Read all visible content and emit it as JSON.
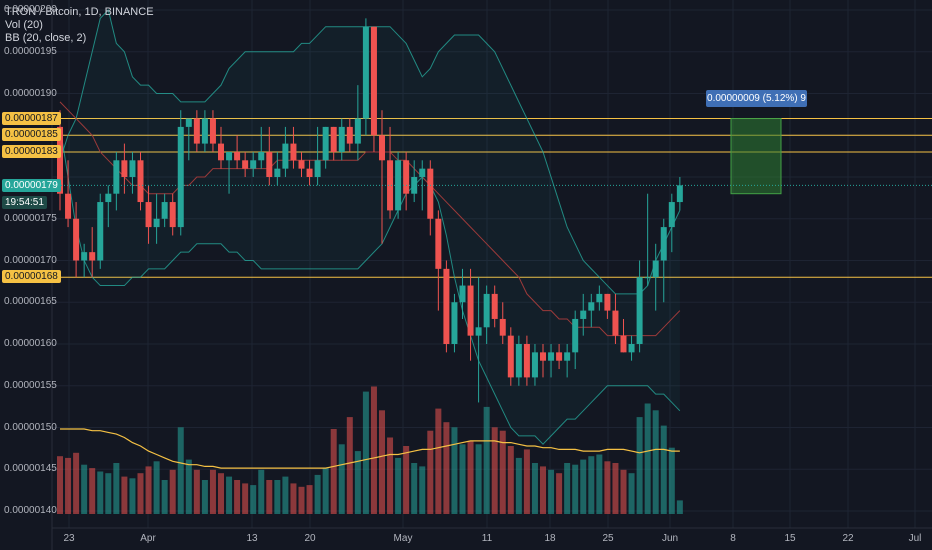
{
  "legend": {
    "title": "TRON / Bitcoin, 1D, BINANCE",
    "volume": "Vol (20)",
    "bollinger": "BB (20, close, 2)"
  },
  "price_axis": {
    "labels": [
      "0.00000200",
      "0.00000195",
      "0.00000190",
      "0.00000175",
      "0.00000170",
      "0.00000165",
      "0.00000160",
      "0.00000155",
      "0.00000150",
      "0.00000145",
      "0.00000140"
    ]
  },
  "horizontal_lines": {
    "labels": [
      "0.00000187",
      "0.00000185",
      "0.00000183",
      "0.00000168"
    ],
    "color": "#f5c144"
  },
  "current_price": {
    "label": "0.00000179",
    "countdown": "19:54:51",
    "color": "#26a69a"
  },
  "measure_tool": {
    "label": "0.00000009 (5.12%) 9"
  },
  "time_axis": {
    "labels": [
      "23",
      "Apr",
      "13",
      "20",
      "May",
      "11",
      "18",
      "25",
      "Jun",
      "8",
      "15",
      "22",
      "Jul"
    ]
  },
  "colors": {
    "up": "#26a69a",
    "down": "#ef5350",
    "bb_band": "#26a69a",
    "bb_basis": "#9c3a3a",
    "vol_ma": "#f5c144",
    "background": "#131722"
  },
  "chart_data": {
    "type": "candlestick",
    "title": "TRON / Bitcoin, 1D, BINANCE",
    "ylim": [
      1.38e-06,
      2.02e-06
    ],
    "candles": [
      {
        "o": 1.86e-06,
        "h": 1.88e-06,
        "l": 1.76e-06,
        "c": 1.78e-06,
        "v": 34
      },
      {
        "o": 1.78e-06,
        "h": 1.82e-06,
        "l": 1.74e-06,
        "c": 1.75e-06,
        "v": 33
      },
      {
        "o": 1.75e-06,
        "h": 1.77e-06,
        "l": 1.68e-06,
        "c": 1.7e-06,
        "v": 36
      },
      {
        "o": 1.7e-06,
        "h": 1.72e-06,
        "l": 1.68e-06,
        "c": 1.71e-06,
        "v": 29
      },
      {
        "o": 1.71e-06,
        "h": 1.74e-06,
        "l": 1.68e-06,
        "c": 1.7e-06,
        "v": 27
      },
      {
        "o": 1.7e-06,
        "h": 1.78e-06,
        "l": 1.69e-06,
        "c": 1.77e-06,
        "v": 25
      },
      {
        "o": 1.77e-06,
        "h": 1.79e-06,
        "l": 1.74e-06,
        "c": 1.78e-06,
        "v": 24
      },
      {
        "o": 1.78e-06,
        "h": 1.83e-06,
        "l": 1.76e-06,
        "c": 1.82e-06,
        "v": 30
      },
      {
        "o": 1.82e-06,
        "h": 1.84e-06,
        "l": 1.78e-06,
        "c": 1.8e-06,
        "v": 22
      },
      {
        "o": 1.8e-06,
        "h": 1.83e-06,
        "l": 1.78e-06,
        "c": 1.82e-06,
        "v": 21
      },
      {
        "o": 1.82e-06,
        "h": 1.83e-06,
        "l": 1.76e-06,
        "c": 1.77e-06,
        "v": 24
      },
      {
        "o": 1.77e-06,
        "h": 1.79e-06,
        "l": 1.72e-06,
        "c": 1.74e-06,
        "v": 28
      },
      {
        "o": 1.74e-06,
        "h": 1.78e-06,
        "l": 1.72e-06,
        "c": 1.75e-06,
        "v": 31
      },
      {
        "o": 1.75e-06,
        "h": 1.78e-06,
        "l": 1.74e-06,
        "c": 1.77e-06,
        "v": 20
      },
      {
        "o": 1.77e-06,
        "h": 1.78e-06,
        "l": 1.73e-06,
        "c": 1.74e-06,
        "v": 26
      },
      {
        "o": 1.74e-06,
        "h": 1.88e-06,
        "l": 1.73e-06,
        "c": 1.86e-06,
        "v": 51
      },
      {
        "o": 1.86e-06,
        "h": 1.87e-06,
        "l": 1.82e-06,
        "c": 1.87e-06,
        "v": 32
      },
      {
        "o": 1.87e-06,
        "h": 1.88e-06,
        "l": 1.83e-06,
        "c": 1.84e-06,
        "v": 26
      },
      {
        "o": 1.84e-06,
        "h": 1.88e-06,
        "l": 1.83e-06,
        "c": 1.87e-06,
        "v": 20
      },
      {
        "o": 1.87e-06,
        "h": 1.88e-06,
        "l": 1.83e-06,
        "c": 1.84e-06,
        "v": 26
      },
      {
        "o": 1.84e-06,
        "h": 1.86e-06,
        "l": 1.81e-06,
        "c": 1.82e-06,
        "v": 24
      },
      {
        "o": 1.82e-06,
        "h": 1.83e-06,
        "l": 1.78e-06,
        "c": 1.83e-06,
        "v": 22
      },
      {
        "o": 1.83e-06,
        "h": 1.85e-06,
        "l": 1.81e-06,
        "c": 1.82e-06,
        "v": 20
      },
      {
        "o": 1.82e-06,
        "h": 1.83e-06,
        "l": 1.8e-06,
        "c": 1.81e-06,
        "v": 18
      },
      {
        "o": 1.81e-06,
        "h": 1.83e-06,
        "l": 1.8e-06,
        "c": 1.82e-06,
        "v": 17
      },
      {
        "o": 1.82e-06,
        "h": 1.86e-06,
        "l": 1.81e-06,
        "c": 1.83e-06,
        "v": 26
      },
      {
        "o": 1.83e-06,
        "h": 1.86e-06,
        "l": 1.79e-06,
        "c": 1.8e-06,
        "v": 20
      },
      {
        "o": 1.8e-06,
        "h": 1.83e-06,
        "l": 1.79e-06,
        "c": 1.81e-06,
        "v": 20
      },
      {
        "o": 1.81e-06,
        "h": 1.86e-06,
        "l": 1.8e-06,
        "c": 1.84e-06,
        "v": 22
      },
      {
        "o": 1.84e-06,
        "h": 1.86e-06,
        "l": 1.81e-06,
        "c": 1.82e-06,
        "v": 18
      },
      {
        "o": 1.82e-06,
        "h": 1.83e-06,
        "l": 1.8e-06,
        "c": 1.81e-06,
        "v": 16
      },
      {
        "o": 1.81e-06,
        "h": 1.82e-06,
        "l": 1.79e-06,
        "c": 1.8e-06,
        "v": 17
      },
      {
        "o": 1.8e-06,
        "h": 1.86e-06,
        "l": 1.79e-06,
        "c": 1.82e-06,
        "v": 23
      },
      {
        "o": 1.82e-06,
        "h": 1.86e-06,
        "l": 1.81e-06,
        "c": 1.86e-06,
        "v": 27
      },
      {
        "o": 1.86e-06,
        "h": 1.86e-06,
        "l": 1.82e-06,
        "c": 1.83e-06,
        "v": 50
      },
      {
        "o": 1.83e-06,
        "h": 1.87e-06,
        "l": 1.82e-06,
        "c": 1.86e-06,
        "v": 41
      },
      {
        "o": 1.86e-06,
        "h": 1.87e-06,
        "l": 1.83e-06,
        "c": 1.84e-06,
        "v": 57
      },
      {
        "o": 1.84e-06,
        "h": 1.91e-06,
        "l": 1.82e-06,
        "c": 1.87e-06,
        "v": 37
      },
      {
        "o": 1.87e-06,
        "h": 1.99e-06,
        "l": 1.85e-06,
        "c": 1.98e-06,
        "v": 72
      },
      {
        "o": 1.98e-06,
        "h": 1.98e-06,
        "l": 1.83e-06,
        "c": 1.85e-06,
        "v": 75
      },
      {
        "o": 1.85e-06,
        "h": 1.88e-06,
        "l": 1.72e-06,
        "c": 1.82e-06,
        "v": 61
      },
      {
        "o": 1.82e-06,
        "h": 1.86e-06,
        "l": 1.75e-06,
        "c": 1.76e-06,
        "v": 45
      },
      {
        "o": 1.76e-06,
        "h": 1.83e-06,
        "l": 1.75e-06,
        "c": 1.82e-06,
        "v": 33
      },
      {
        "o": 1.82e-06,
        "h": 1.83e-06,
        "l": 1.76e-06,
        "c": 1.78e-06,
        "v": 40
      },
      {
        "o": 1.78e-06,
        "h": 1.82e-06,
        "l": 1.77e-06,
        "c": 1.8e-06,
        "v": 30
      },
      {
        "o": 1.8e-06,
        "h": 1.82e-06,
        "l": 1.76e-06,
        "c": 1.81e-06,
        "v": 28
      },
      {
        "o": 1.81e-06,
        "h": 1.82e-06,
        "l": 1.73e-06,
        "c": 1.75e-06,
        "v": 49
      },
      {
        "o": 1.75e-06,
        "h": 1.76e-06,
        "l": 1.64e-06,
        "c": 1.69e-06,
        "v": 62
      },
      {
        "o": 1.69e-06,
        "h": 1.7e-06,
        "l": 1.59e-06,
        "c": 1.6e-06,
        "v": 54
      },
      {
        "o": 1.6e-06,
        "h": 1.66e-06,
        "l": 1.59e-06,
        "c": 1.65e-06,
        "v": 51
      },
      {
        "o": 1.65e-06,
        "h": 1.69e-06,
        "l": 1.63e-06,
        "c": 1.67e-06,
        "v": 41
      },
      {
        "o": 1.67e-06,
        "h": 1.69e-06,
        "l": 1.58e-06,
        "c": 1.61e-06,
        "v": 43
      },
      {
        "o": 1.61e-06,
        "h": 1.68e-06,
        "l": 1.53e-06,
        "c": 1.62e-06,
        "v": 41
      },
      {
        "o": 1.62e-06,
        "h": 1.67e-06,
        "l": 1.6e-06,
        "c": 1.66e-06,
        "v": 63
      },
      {
        "o": 1.66e-06,
        "h": 1.67e-06,
        "l": 1.62e-06,
        "c": 1.63e-06,
        "v": 51
      },
      {
        "o": 1.63e-06,
        "h": 1.65e-06,
        "l": 1.6e-06,
        "c": 1.61e-06,
        "v": 49
      },
      {
        "o": 1.61e-06,
        "h": 1.62e-06,
        "l": 1.55e-06,
        "c": 1.56e-06,
        "v": 40
      },
      {
        "o": 1.56e-06,
        "h": 1.61e-06,
        "l": 1.55e-06,
        "c": 1.6e-06,
        "v": 33
      },
      {
        "o": 1.6e-06,
        "h": 1.61e-06,
        "l": 1.55e-06,
        "c": 1.56e-06,
        "v": 38
      },
      {
        "o": 1.56e-06,
        "h": 1.6e-06,
        "l": 1.55e-06,
        "c": 1.59e-06,
        "v": 30
      },
      {
        "o": 1.59e-06,
        "h": 1.6e-06,
        "l": 1.56e-06,
        "c": 1.58e-06,
        "v": 28
      },
      {
        "o": 1.58e-06,
        "h": 1.6e-06,
        "l": 1.56e-06,
        "c": 1.59e-06,
        "v": 26
      },
      {
        "o": 1.59e-06,
        "h": 1.6e-06,
        "l": 1.57e-06,
        "c": 1.58e-06,
        "v": 24
      },
      {
        "o": 1.58e-06,
        "h": 1.6e-06,
        "l": 1.56e-06,
        "c": 1.59e-06,
        "v": 30
      },
      {
        "o": 1.59e-06,
        "h": 1.64e-06,
        "l": 1.57e-06,
        "c": 1.63e-06,
        "v": 29
      },
      {
        "o": 1.63e-06,
        "h": 1.66e-06,
        "l": 1.61e-06,
        "c": 1.64e-06,
        "v": 32
      },
      {
        "o": 1.64e-06,
        "h": 1.66e-06,
        "l": 1.62e-06,
        "c": 1.65e-06,
        "v": 34
      },
      {
        "o": 1.65e-06,
        "h": 1.67e-06,
        "l": 1.64e-06,
        "c": 1.66e-06,
        "v": 35
      },
      {
        "o": 1.66e-06,
        "h": 1.66e-06,
        "l": 1.63e-06,
        "c": 1.64e-06,
        "v": 31
      },
      {
        "o": 1.64e-06,
        "h": 1.66e-06,
        "l": 1.6e-06,
        "c": 1.61e-06,
        "v": 30
      },
      {
        "o": 1.61e-06,
        "h": 1.63e-06,
        "l": 1.59e-06,
        "c": 1.59e-06,
        "v": 26
      },
      {
        "o": 1.59e-06,
        "h": 1.61e-06,
        "l": 1.58e-06,
        "c": 1.6e-06,
        "v": 24
      },
      {
        "o": 1.6e-06,
        "h": 1.7e-06,
        "l": 1.59e-06,
        "c": 1.68e-06,
        "v": 57
      },
      {
        "o": 1.68e-06,
        "h": 1.78e-06,
        "l": 1.67e-06,
        "c": 1.68e-06,
        "v": 65
      },
      {
        "o": 1.68e-06,
        "h": 1.72e-06,
        "l": 1.64e-06,
        "c": 1.7e-06,
        "v": 61
      },
      {
        "o": 1.7e-06,
        "h": 1.75e-06,
        "l": 1.65e-06,
        "c": 1.74e-06,
        "v": 52
      },
      {
        "o": 1.74e-06,
        "h": 1.78e-06,
        "l": 1.71e-06,
        "c": 1.77e-06,
        "v": 39
      },
      {
        "o": 1.77e-06,
        "h": 1.8e-06,
        "l": 1.76e-06,
        "c": 1.79e-06,
        "v": 8
      }
    ],
    "bb_upper": [
      1.82e-06,
      1.85e-06,
      1.87e-06,
      1.91e-06,
      1.95e-06,
      1.99e-06,
      2e-06,
      1.96e-06,
      1.95e-06,
      1.92e-06,
      1.91e-06,
      1.91e-06,
      1.9e-06,
      1.9e-06,
      1.9e-06,
      1.89e-06,
      1.89e-06,
      1.89e-06,
      1.89e-06,
      1.9e-06,
      1.91e-06,
      1.93e-06,
      1.94e-06,
      1.95e-06,
      1.95e-06,
      1.95e-06,
      1.95e-06,
      1.95e-06,
      1.95e-06,
      1.95e-06,
      1.96e-06,
      1.96e-06,
      1.97e-06,
      1.98e-06,
      1.98e-06,
      1.98e-06,
      1.98e-06,
      1.98e-06,
      1.98e-06,
      1.98e-06,
      1.98e-06,
      1.98e-06,
      1.97e-06,
      1.96e-06,
      1.94e-06,
      1.92e-06,
      1.93e-06,
      1.95e-06,
      1.96e-06,
      1.97e-06,
      1.97e-06,
      1.97e-06,
      1.97e-06,
      1.96e-06,
      1.95e-06,
      1.93e-06,
      1.91e-06,
      1.89e-06,
      1.87e-06,
      1.85e-06,
      1.83e-06,
      1.8e-06,
      1.77e-06,
      1.74e-06,
      1.72e-06,
      1.7e-06,
      1.69e-06,
      1.68e-06,
      1.67e-06,
      1.66e-06,
      1.66e-06,
      1.66e-06,
      1.66e-06,
      1.67e-06,
      1.7e-06,
      1.72e-06,
      1.74e-06,
      1.76e-06
    ],
    "bb_basis": [
      1.89e-06,
      1.88e-06,
      1.87e-06,
      1.86e-06,
      1.85e-06,
      1.83e-06,
      1.82e-06,
      1.81e-06,
      1.8e-06,
      1.79e-06,
      1.79e-06,
      1.78e-06,
      1.78e-06,
      1.78e-06,
      1.78e-06,
      1.79e-06,
      1.79e-06,
      1.8e-06,
      1.8e-06,
      1.81e-06,
      1.81e-06,
      1.81e-06,
      1.81e-06,
      1.81e-06,
      1.81e-06,
      1.81e-06,
      1.81e-06,
      1.82e-06,
      1.82e-06,
      1.82e-06,
      1.82e-06,
      1.82e-06,
      1.82e-06,
      1.82e-06,
      1.82e-06,
      1.82e-06,
      1.82e-06,
      1.82e-06,
      1.83e-06,
      1.83e-06,
      1.83e-06,
      1.83e-06,
      1.82e-06,
      1.82e-06,
      1.81e-06,
      1.8e-06,
      1.79e-06,
      1.78e-06,
      1.77e-06,
      1.76e-06,
      1.75e-06,
      1.74e-06,
      1.73e-06,
      1.72e-06,
      1.71e-06,
      1.7e-06,
      1.69e-06,
      1.68e-06,
      1.66e-06,
      1.65e-06,
      1.64e-06,
      1.64e-06,
      1.63e-06,
      1.63e-06,
      1.62e-06,
      1.62e-06,
      1.62e-06,
      1.62e-06,
      1.61e-06,
      1.61e-06,
      1.61e-06,
      1.61e-06,
      1.61e-06,
      1.61e-06,
      1.61e-06,
      1.62e-06,
      1.63e-06,
      1.64e-06
    ],
    "bb_lower": [
      1.86e-06,
      1.8e-06,
      1.74e-06,
      1.7e-06,
      1.68e-06,
      1.67e-06,
      1.67e-06,
      1.67e-06,
      1.67e-06,
      1.68e-06,
      1.68e-06,
      1.69e-06,
      1.69e-06,
      1.69e-06,
      1.7e-06,
      1.71e-06,
      1.71e-06,
      1.72e-06,
      1.72e-06,
      1.72e-06,
      1.72e-06,
      1.71e-06,
      1.71e-06,
      1.7e-06,
      1.7e-06,
      1.69e-06,
      1.69e-06,
      1.69e-06,
      1.69e-06,
      1.69e-06,
      1.69e-06,
      1.69e-06,
      1.69e-06,
      1.69e-06,
      1.69e-06,
      1.69e-06,
      1.69e-06,
      1.69e-06,
      1.7e-06,
      1.71e-06,
      1.72e-06,
      1.74e-06,
      1.76e-06,
      1.78e-06,
      1.79e-06,
      1.8e-06,
      1.79e-06,
      1.77e-06,
      1.73e-06,
      1.68e-06,
      1.64e-06,
      1.61e-06,
      1.58e-06,
      1.56e-06,
      1.54e-06,
      1.52e-06,
      1.5e-06,
      1.49e-06,
      1.49e-06,
      1.49e-06,
      1.48e-06,
      1.49e-06,
      1.5e-06,
      1.51e-06,
      1.51e-06,
      1.52e-06,
      1.53e-06,
      1.54e-06,
      1.55e-06,
      1.55e-06,
      1.55e-06,
      1.55e-06,
      1.55e-06,
      1.55e-06,
      1.54e-06,
      1.54e-06,
      1.53e-06,
      1.52e-06
    ],
    "vol_ma": [
      50,
      50,
      50,
      50,
      49,
      49,
      48,
      47,
      45,
      42,
      40,
      37,
      35,
      33,
      31,
      30,
      29,
      29,
      28,
      28,
      27,
      27,
      27,
      27,
      27,
      27,
      27,
      27,
      27,
      27,
      27,
      27,
      27,
      27,
      28,
      29,
      30,
      31,
      32,
      33,
      34,
      35,
      35,
      36,
      37,
      38,
      38,
      39,
      40,
      41,
      42,
      43,
      43,
      43,
      43,
      42,
      42,
      41,
      40,
      40,
      39,
      39,
      38,
      38,
      38,
      37,
      37,
      37,
      38,
      38,
      38,
      37,
      36,
      37,
      38,
      38,
      37,
      37
    ],
    "horizontal_levels": [
      1.87e-06,
      1.85e-06,
      1.83e-06,
      1.68e-06
    ],
    "measure": {
      "from": 1.78e-06,
      "to": 1.87e-06
    }
  }
}
